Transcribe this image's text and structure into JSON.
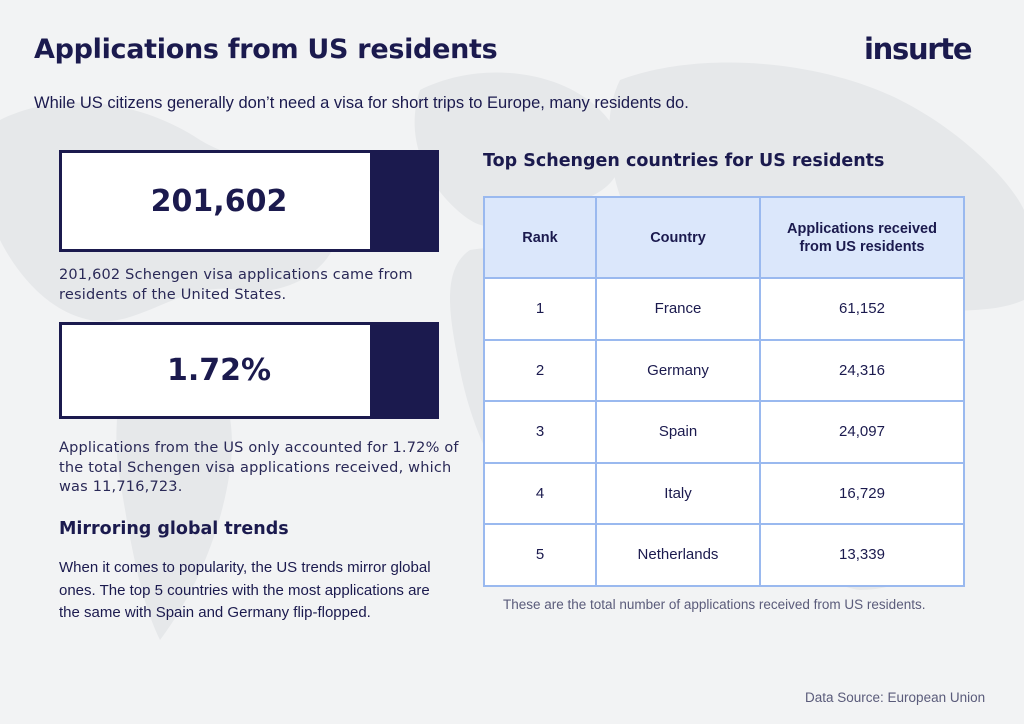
{
  "header": {
    "title": "Applications from US residents",
    "logo_text": "insurte",
    "subtitle": "While US citizens generally don’t need a visa for short trips to Europe, many residents do."
  },
  "stats": [
    {
      "value": "201,602",
      "description": "201,602 Schengen visa applications came from residents of the United States."
    },
    {
      "value": "1.72%",
      "description": "Applications from the US only accounted for 1.72% of the total Schengen visa applications received, which was 11,716,723."
    }
  ],
  "section": {
    "heading": "Mirroring global trends",
    "body": "When it comes to popularity, the US trends mirror global ones. The top 5 countries with the most applications are the same with Spain and Germany flip-flopped."
  },
  "table": {
    "title": "Top Schengen countries for US residents",
    "headers": [
      "Rank",
      "Country",
      "Applications received from US residents"
    ],
    "rows": [
      [
        "1",
        "France",
        "61,152"
      ],
      [
        "2",
        "Germany",
        "24,316"
      ],
      [
        "3",
        "Spain",
        "24,097"
      ],
      [
        "4",
        "Italy",
        "16,729"
      ],
      [
        "5",
        "Netherlands",
        "13,339"
      ]
    ],
    "note": "These are the total number of applications received from US residents."
  },
  "source": "Data Source: European Union",
  "colors": {
    "navy": "#1b1a4e",
    "table_border": "#9ab9ef",
    "table_header_bg": "#dbe7fb",
    "background": "#f2f3f4"
  }
}
